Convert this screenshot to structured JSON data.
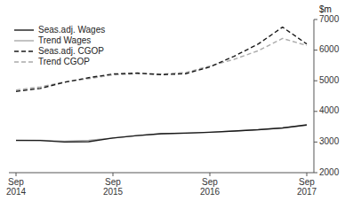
{
  "chart_data": {
    "type": "line",
    "y_label": "$m",
    "categories": [
      "Sep\n2014",
      null,
      null,
      null,
      "Sep\n2015",
      null,
      null,
      null,
      "Sep\n2016",
      null,
      null,
      null,
      "Sep\n2017"
    ],
    "series": [
      {
        "name": "Seas.adj. Wages",
        "color": "#1a1a1a",
        "line_style": "solid",
        "values": [
          3050,
          3050,
          3000,
          3010,
          3130,
          3210,
          3270,
          3290,
          3320,
          3360,
          3400,
          3460,
          3560
        ]
      },
      {
        "name": "Trend Wages",
        "color": "#aaaaaa",
        "line_style": "solid",
        "values": [
          3060,
          3055,
          3025,
          3055,
          3130,
          3210,
          3270,
          3295,
          3320,
          3360,
          3405,
          3460,
          3545
        ]
      },
      {
        "name": "Seas.adj. CGOP",
        "color": "#1a1a1a",
        "line_style": "dashed",
        "values": [
          4650,
          4750,
          4950,
          5100,
          5220,
          5250,
          5200,
          5230,
          5450,
          5800,
          6200,
          6750,
          6200
        ]
      },
      {
        "name": "Trend CGOP",
        "color": "#aaaaaa",
        "line_style": "dashed",
        "values": [
          4700,
          4800,
          4960,
          5070,
          5190,
          5230,
          5220,
          5270,
          5480,
          5700,
          5980,
          6380,
          6150
        ]
      }
    ],
    "ylim": [
      2000,
      7000
    ],
    "yticks": [
      2000,
      3000,
      4000,
      5000,
      6000,
      7000
    ],
    "grid": false,
    "legend": "upper left"
  }
}
